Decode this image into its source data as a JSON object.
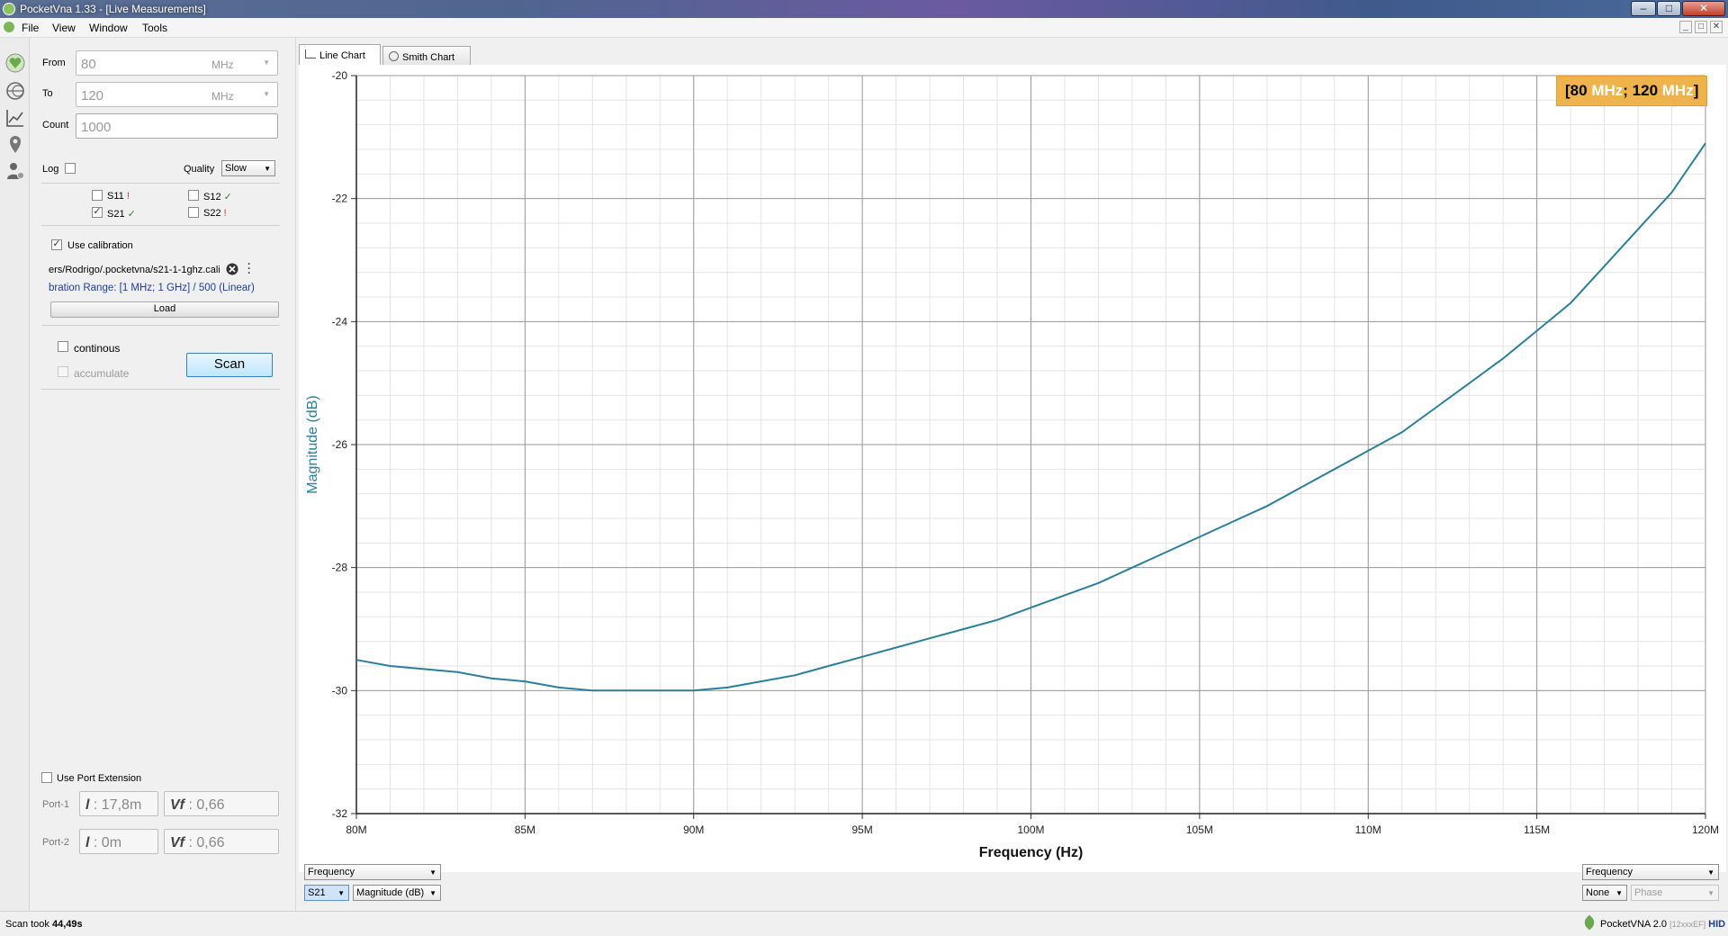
{
  "window": {
    "title": "PocketVna 1.33 - [Live Measurements]",
    "minimize": "–",
    "maximize": "□",
    "close": "✕"
  },
  "menu": [
    "File",
    "View",
    "Window",
    "Tools"
  ],
  "mdi_buttons": [
    "_",
    "□",
    "✕"
  ],
  "toolbar_icons": [
    "heart-icon",
    "smith-chart-icon",
    "line-chart-icon",
    "location-pin-icon",
    "user-settings-icon"
  ],
  "sweep": {
    "from_label": "From",
    "from_value": "80",
    "from_unit": "MHz",
    "to_label": "To",
    "to_value": "120",
    "to_unit": "MHz",
    "count_label": "Count",
    "count_value": "1000",
    "log_label": "Log",
    "quality_label": "Quality",
    "quality_value": "Slow"
  },
  "params": [
    {
      "name": "S11",
      "checked": false,
      "mark": "!",
      "mark_color": "#d33"
    },
    {
      "name": "S12",
      "checked": false,
      "mark": "✓",
      "mark_color": "#2a8a2a"
    },
    {
      "name": "S21",
      "checked": true,
      "mark": "✓",
      "mark_color": "#2a8a2a"
    },
    {
      "name": "S22",
      "checked": false,
      "mark": "!",
      "mark_color": "#d33"
    }
  ],
  "calibration": {
    "use_label": "Use calibration",
    "file": "ers/Rodrigo/.pocketvna/s21-1-1ghz.cali",
    "range_text": "bration Range: [1 MHz; 1 GHz] / 500 (Linear)",
    "load_label": "Load"
  },
  "scan": {
    "continous_label": "continous",
    "accumulate_label": "accumulate",
    "scan_label": "Scan"
  },
  "port_extension": {
    "label": "Use Port Extension",
    "port1_label": "Port-1",
    "port1_length": "17,8m",
    "port1_vf": "0,66",
    "port2_label": "Port-2",
    "port2_length": "0m",
    "port2_vf": "0,66",
    "l_symbol": "l",
    "vf_symbol": "Vf"
  },
  "tabs": [
    "Line Chart",
    "Smith Chart"
  ],
  "range_badge": {
    "open": "[",
    "from_num": "80",
    "from_unit": " MHz",
    "sep": "; ",
    "to_num": "120",
    "to_unit": " MHz",
    "close": "]"
  },
  "chart_data": {
    "type": "line",
    "xlabel": "Frequency (Hz)",
    "ylabel": "Magnitude (dB)",
    "x_tick_labels": [
      "80M",
      "85M",
      "90M",
      "95M",
      "100M",
      "105M",
      "110M",
      "115M",
      "120M"
    ],
    "y_tick_labels": [
      "-20",
      "-22",
      "-24",
      "-26",
      "-28",
      "-30",
      "-32"
    ],
    "xlim": [
      80,
      120
    ],
    "ylim": [
      -32,
      -20
    ],
    "x_unit": "MHz",
    "grid": true,
    "series": [
      {
        "name": "S21",
        "color": "#2a7f9a",
        "x": [
          80,
          81,
          82,
          83,
          84,
          85,
          86,
          87,
          88,
          89,
          90,
          91,
          92,
          93,
          94,
          95,
          96,
          97,
          98,
          99,
          100,
          101,
          102,
          103,
          104,
          105,
          106,
          107,
          108,
          109,
          110,
          111,
          112,
          113,
          114,
          115,
          116,
          117,
          118,
          119,
          120
        ],
        "y": [
          -29.5,
          -29.6,
          -29.65,
          -29.7,
          -29.8,
          -29.85,
          -29.95,
          -30.0,
          -30.0,
          -30.0,
          -30.0,
          -29.95,
          -29.85,
          -29.75,
          -29.6,
          -29.45,
          -29.3,
          -29.15,
          -29.0,
          -28.85,
          -28.65,
          -28.45,
          -28.25,
          -28.0,
          -27.75,
          -27.5,
          -27.25,
          -27.0,
          -26.7,
          -26.4,
          -26.1,
          -25.8,
          -25.4,
          -25.0,
          -24.6,
          -24.15,
          -23.7,
          -23.1,
          -22.5,
          -21.9,
          -21.1
        ]
      }
    ]
  },
  "bottom_left": {
    "x_axis": "Frequency",
    "param": "S21",
    "measure": "Magnitude (dB)"
  },
  "bottom_right": {
    "x_axis": "Frequency",
    "param": "None",
    "measure": "Phase"
  },
  "status": {
    "scan_took_label": "Scan took",
    "scan_took_value": "44,49s",
    "device": "PocketVNA 2.0",
    "device_id": "[12xxxEF]",
    "conn": "HID"
  }
}
